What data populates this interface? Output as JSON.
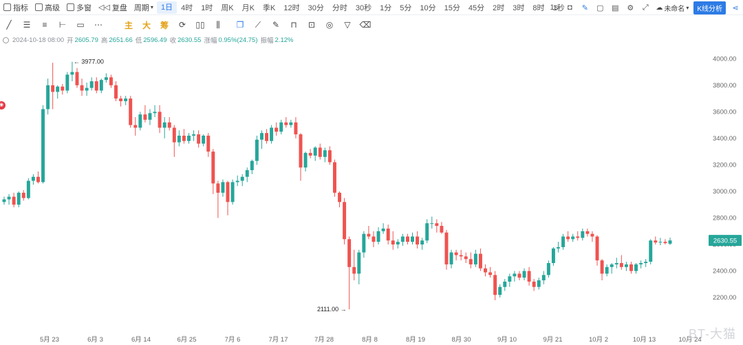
{
  "toolbar": {
    "indicators": "指标",
    "advanced": "高级",
    "multi_window": "多窗",
    "replay": "复盘",
    "period": "周期",
    "periods": [
      "1日",
      "4时",
      "1时",
      "周K",
      "月K",
      "季K",
      "12时",
      "30分",
      "分时",
      "30秒",
      "1分",
      "5分",
      "10分",
      "15分",
      "45分",
      "2时",
      "3时",
      "8时",
      "1秒"
    ],
    "active_period": "1日",
    "right": {
      "interval": "1s",
      "layout_name": "未命名",
      "kline_analysis": "K线分析"
    }
  },
  "drawing_tools": {
    "main": "主",
    "big": "大",
    "chips": "筹"
  },
  "ohlc": {
    "date": "2024-10-18 08:00",
    "open_label": "开",
    "open": "2605.79",
    "high_label": "高",
    "high": "2651.66",
    "low_label": "低",
    "low": "2596.49",
    "close_label": "收",
    "close": "2630.55",
    "change_label": "涨幅",
    "change": "0.95%(24.75)",
    "amplitude_label": "振幅",
    "amplitude": "2.12%"
  },
  "colors": {
    "up": "#26a69a",
    "down": "#ef5350",
    "accent": "#2d7be5",
    "price_tag": "#26a69a"
  },
  "chart_data": {
    "type": "candlestick",
    "y_ticks": [
      "4000.00",
      "3800.00",
      "3600.00",
      "3400.00",
      "3200.00",
      "3000.00",
      "2800.00",
      "2600.00",
      "2400.00",
      "2200.00"
    ],
    "ylim": [
      2050,
      4100
    ],
    "x_ticks": [
      "5月 23",
      "6月 3",
      "6月 14",
      "6月 25",
      "7月 6",
      "7月 17",
      "7月 28",
      "8月 8",
      "8月 19",
      "8月 30",
      "9月 10",
      "9月 21",
      "10月 2",
      "10月 13",
      "10月 24"
    ],
    "high_annotation": "3977.00",
    "low_annotation": "2111.00",
    "last_price": "2630.55",
    "grid": false,
    "candles": [
      [
        2920,
        2960,
        2900,
        2940
      ],
      [
        2940,
        2980,
        2900,
        2960
      ],
      [
        2960,
        2990,
        2880,
        2900
      ],
      [
        2900,
        3000,
        2880,
        2990
      ],
      [
        2990,
        3010,
        2930,
        2950
      ],
      [
        2950,
        3100,
        2940,
        3080
      ],
      [
        3080,
        3130,
        3050,
        3110
      ],
      [
        3110,
        3150,
        3060,
        3070
      ],
      [
        3070,
        3650,
        3060,
        3620
      ],
      [
        3620,
        3850,
        3580,
        3800
      ],
      [
        3800,
        3970,
        3620,
        3750
      ],
      [
        3750,
        3800,
        3700,
        3790
      ],
      [
        3790,
        3810,
        3730,
        3760
      ],
      [
        3760,
        3900,
        3740,
        3880
      ],
      [
        3880,
        3977,
        3830,
        3900
      ],
      [
        3900,
        3930,
        3780,
        3800
      ],
      [
        3800,
        3850,
        3720,
        3760
      ],
      [
        3760,
        3820,
        3720,
        3780
      ],
      [
        3780,
        3860,
        3760,
        3830
      ],
      [
        3830,
        3860,
        3740,
        3760
      ],
      [
        3760,
        3850,
        3740,
        3840
      ],
      [
        3840,
        3890,
        3820,
        3860
      ],
      [
        3860,
        3880,
        3780,
        3800
      ],
      [
        3800,
        3830,
        3680,
        3700
      ],
      [
        3700,
        3720,
        3640,
        3680
      ],
      [
        3680,
        3720,
        3650,
        3700
      ],
      [
        3700,
        3720,
        3480,
        3500
      ],
      [
        3500,
        3560,
        3420,
        3480
      ],
      [
        3480,
        3600,
        3460,
        3580
      ],
      [
        3580,
        3650,
        3520,
        3540
      ],
      [
        3540,
        3620,
        3500,
        3590
      ],
      [
        3590,
        3650,
        3560,
        3600
      ],
      [
        3600,
        3650,
        3440,
        3480
      ],
      [
        3480,
        3560,
        3400,
        3520
      ],
      [
        3520,
        3560,
        3460,
        3480
      ],
      [
        3480,
        3500,
        3260,
        3370
      ],
      [
        3370,
        3460,
        3340,
        3420
      ],
      [
        3420,
        3470,
        3360,
        3380
      ],
      [
        3380,
        3440,
        3360,
        3420
      ],
      [
        3420,
        3460,
        3380,
        3430
      ],
      [
        3430,
        3460,
        3330,
        3360
      ],
      [
        3360,
        3430,
        3340,
        3420
      ],
      [
        3420,
        3440,
        3260,
        3300
      ],
      [
        3300,
        3320,
        2980,
        3060
      ],
      [
        3060,
        3080,
        2800,
        2990
      ],
      [
        2990,
        3090,
        2960,
        3070
      ],
      [
        3070,
        3080,
        2820,
        2920
      ],
      [
        2920,
        3090,
        2900,
        3070
      ],
      [
        3070,
        3120,
        3040,
        3080
      ],
      [
        3080,
        3130,
        3040,
        3110
      ],
      [
        3110,
        3180,
        3070,
        3160
      ],
      [
        3160,
        3240,
        3130,
        3230
      ],
      [
        3230,
        3420,
        3200,
        3390
      ],
      [
        3390,
        3460,
        3320,
        3440
      ],
      [
        3440,
        3470,
        3360,
        3380
      ],
      [
        3380,
        3500,
        3360,
        3480
      ],
      [
        3480,
        3520,
        3420,
        3450
      ],
      [
        3450,
        3540,
        3430,
        3520
      ],
      [
        3520,
        3560,
        3480,
        3500
      ],
      [
        3500,
        3540,
        3480,
        3520
      ],
      [
        3520,
        3560,
        3400,
        3430
      ],
      [
        3430,
        3440,
        3080,
        3180
      ],
      [
        3180,
        3300,
        3150,
        3290
      ],
      [
        3290,
        3320,
        3250,
        3270
      ],
      [
        3270,
        3340,
        3230,
        3330
      ],
      [
        3330,
        3360,
        3240,
        3260
      ],
      [
        3260,
        3330,
        3220,
        3310
      ],
      [
        3310,
        3340,
        3200,
        3220
      ],
      [
        3220,
        3240,
        2960,
        2990
      ],
      [
        2990,
        3000,
        2880,
        2920
      ],
      [
        2920,
        2950,
        2600,
        2640
      ],
      [
        2640,
        2660,
        2111,
        2430
      ],
      [
        2430,
        2560,
        2330,
        2380
      ],
      [
        2380,
        2560,
        2300,
        2540
      ],
      [
        2540,
        2700,
        2500,
        2680
      ],
      [
        2680,
        2740,
        2640,
        2660
      ],
      [
        2660,
        2700,
        2580,
        2620
      ],
      [
        2620,
        2730,
        2600,
        2700
      ],
      [
        2700,
        2760,
        2680,
        2720
      ],
      [
        2720,
        2750,
        2600,
        2630
      ],
      [
        2630,
        2700,
        2560,
        2600
      ],
      [
        2600,
        2640,
        2570,
        2620
      ],
      [
        2620,
        2680,
        2590,
        2660
      ],
      [
        2660,
        2680,
        2600,
        2620
      ],
      [
        2620,
        2690,
        2600,
        2660
      ],
      [
        2660,
        2700,
        2570,
        2600
      ],
      [
        2600,
        2650,
        2560,
        2630
      ],
      [
        2630,
        2790,
        2610,
        2760
      ],
      [
        2760,
        2810,
        2720,
        2760
      ],
      [
        2760,
        2790,
        2690,
        2740
      ],
      [
        2740,
        2770,
        2680,
        2690
      ],
      [
        2690,
        2710,
        2410,
        2450
      ],
      [
        2450,
        2560,
        2420,
        2540
      ],
      [
        2540,
        2560,
        2480,
        2520
      ],
      [
        2520,
        2560,
        2480,
        2510
      ],
      [
        2510,
        2540,
        2460,
        2490
      ],
      [
        2490,
        2540,
        2420,
        2450
      ],
      [
        2450,
        2560,
        2430,
        2530
      ],
      [
        2530,
        2570,
        2400,
        2420
      ],
      [
        2420,
        2450,
        2360,
        2390
      ],
      [
        2390,
        2430,
        2350,
        2370
      ],
      [
        2370,
        2400,
        2180,
        2220
      ],
      [
        2220,
        2300,
        2200,
        2280
      ],
      [
        2280,
        2340,
        2250,
        2320
      ],
      [
        2320,
        2380,
        2280,
        2360
      ],
      [
        2360,
        2400,
        2320,
        2380
      ],
      [
        2380,
        2400,
        2330,
        2350
      ],
      [
        2350,
        2420,
        2330,
        2400
      ],
      [
        2400,
        2430,
        2290,
        2320
      ],
      [
        2320,
        2340,
        2250,
        2280
      ],
      [
        2280,
        2350,
        2260,
        2330
      ],
      [
        2330,
        2400,
        2300,
        2370
      ],
      [
        2370,
        2480,
        2350,
        2460
      ],
      [
        2460,
        2580,
        2440,
        2570
      ],
      [
        2570,
        2620,
        2540,
        2580
      ],
      [
        2580,
        2680,
        2560,
        2660
      ],
      [
        2660,
        2700,
        2620,
        2640
      ],
      [
        2640,
        2680,
        2620,
        2660
      ],
      [
        2660,
        2700,
        2630,
        2650
      ],
      [
        2650,
        2720,
        2630,
        2700
      ],
      [
        2700,
        2720,
        2660,
        2680
      ],
      [
        2680,
        2700,
        2620,
        2660
      ],
      [
        2660,
        2670,
        2440,
        2480
      ],
      [
        2480,
        2490,
        2330,
        2380
      ],
      [
        2380,
        2450,
        2360,
        2430
      ],
      [
        2430,
        2460,
        2380,
        2450
      ],
      [
        2450,
        2500,
        2420,
        2460
      ],
      [
        2460,
        2520,
        2410,
        2430
      ],
      [
        2430,
        2470,
        2400,
        2450
      ],
      [
        2450,
        2470,
        2380,
        2400
      ],
      [
        2400,
        2460,
        2380,
        2450
      ],
      [
        2450,
        2480,
        2420,
        2460
      ],
      [
        2460,
        2490,
        2430,
        2470
      ],
      [
        2470,
        2640,
        2450,
        2630
      ],
      [
        2630,
        2660,
        2600,
        2615
      ],
      [
        2615,
        2650,
        2595,
        2620
      ],
      [
        2620,
        2640,
        2600,
        2610
      ],
      [
        2605.79,
        2651.66,
        2596.49,
        2630.55
      ]
    ]
  }
}
